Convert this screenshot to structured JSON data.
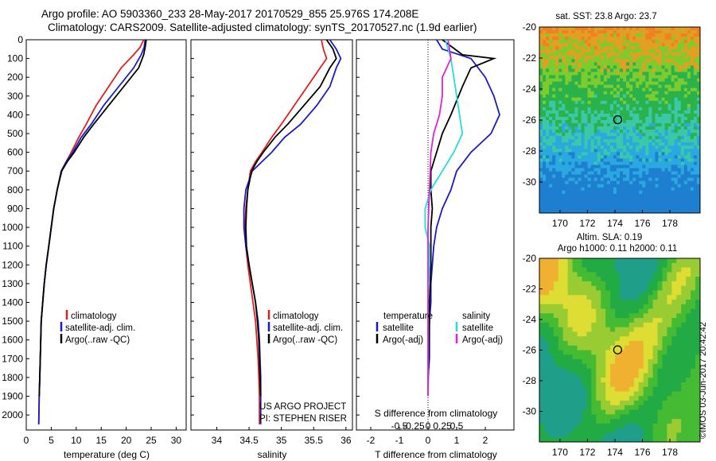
{
  "header": {
    "line1": "Argo profile: AO 5903360_233 28-May-2017 20170529_855 25.976S 174.208E",
    "line2": "Climatology: CARS2009. Satellite-adjusted climatology: synTS_20170527.nc (1.9d earlier)"
  },
  "colors": {
    "clim": "#e02020",
    "sat": "#1a1acc",
    "argo": "#000000",
    "sat_s": "#22dddd",
    "argo_s": "#dd22dd"
  },
  "chart_data": [
    {
      "type": "line",
      "xlabel": "temperature (deg C)",
      "xlim": [
        0,
        32
      ],
      "ylim": [
        0,
        2080
      ],
      "xticks": [
        "0",
        "5",
        "10",
        "15",
        "20",
        "25",
        "30"
      ],
      "yticks": [
        "0",
        "100",
        "200",
        "300",
        "400",
        "500",
        "600",
        "700",
        "800",
        "900",
        "1000",
        "1100",
        "1200",
        "1300",
        "1400",
        "1500",
        "1600",
        "1700",
        "1800",
        "1900",
        "2000"
      ],
      "legend": [
        "climatology",
        "satellite-adj. clim.",
        "Argo(..raw -QC)"
      ],
      "series": [
        {
          "name": "climatology",
          "color": "clim",
          "x": [
            23.5,
            22.8,
            21.5,
            19.0,
            16.5,
            14.0,
            12.0,
            10.5,
            9.0,
            8.0,
            7.0,
            6.2,
            5.5,
            5.0,
            4.5,
            4.0,
            3.6,
            3.3,
            3.0,
            2.9,
            2.8,
            2.7,
            2.6,
            2.5
          ],
          "y": [
            0,
            40,
            80,
            150,
            250,
            350,
            450,
            520,
            600,
            650,
            700,
            800,
            900,
            1000,
            1100,
            1200,
            1300,
            1400,
            1500,
            1600,
            1700,
            1800,
            1900,
            2050
          ]
        },
        {
          "name": "satellite-adj. clim.",
          "color": "sat",
          "x": [
            23.8,
            23.6,
            23.0,
            21.5,
            18.5,
            15.5,
            13.0,
            11.0,
            9.3,
            8.0,
            7.0,
            6.2,
            5.5,
            5.0,
            4.5,
            4.0,
            3.6,
            3.3,
            3.0,
            2.9,
            2.8,
            2.7,
            2.6,
            2.5
          ],
          "y": [
            0,
            40,
            80,
            150,
            250,
            350,
            450,
            520,
            600,
            650,
            700,
            800,
            900,
            1000,
            1100,
            1200,
            1300,
            1400,
            1500,
            1600,
            1700,
            1800,
            1900,
            2050
          ]
        },
        {
          "name": "Argo(..raw -QC)",
          "color": "argo",
          "x": [
            24.0,
            23.8,
            23.5,
            22.5,
            19.5,
            16.5,
            13.5,
            11.5,
            9.6,
            8.2,
            7.1,
            6.2,
            5.5,
            5.0,
            4.5,
            4.0,
            3.6,
            3.3,
            3.0,
            2.9,
            2.8,
            2.7,
            2.6
          ],
          "y": [
            0,
            40,
            80,
            150,
            250,
            350,
            450,
            520,
            600,
            650,
            700,
            800,
            900,
            1000,
            1100,
            1200,
            1300,
            1400,
            1500,
            1600,
            1700,
            1800,
            1900
          ]
        }
      ]
    },
    {
      "type": "line",
      "xlabel": "salinity",
      "xlim": [
        33.6,
        36.1
      ],
      "ylim": [
        0,
        2080
      ],
      "xticks": [
        "34",
        "34.5",
        "35",
        "35.5",
        "36"
      ],
      "legend": [
        "climatology",
        "satellite-adj. clim.",
        "Argo(..raw -QC)"
      ],
      "annotation": [
        "US ARGO PROJECT",
        "PI: STEPHEN RISER"
      ],
      "series": [
        {
          "name": "climatology",
          "color": "clim",
          "x": [
            35.62,
            35.65,
            35.7,
            35.6,
            35.4,
            35.2,
            35.0,
            34.85,
            34.7,
            34.6,
            34.52,
            34.48,
            34.45,
            34.44,
            34.45,
            34.48,
            34.52,
            34.56,
            34.6,
            34.62,
            34.64,
            34.65,
            34.66,
            34.66
          ],
          "y": [
            0,
            50,
            100,
            150,
            250,
            350,
            450,
            520,
            600,
            650,
            700,
            800,
            900,
            1000,
            1100,
            1200,
            1300,
            1400,
            1500,
            1600,
            1700,
            1800,
            1900,
            2050
          ]
        },
        {
          "name": "satellite-adj. clim.",
          "color": "sat",
          "x": [
            35.75,
            35.85,
            35.92,
            35.85,
            35.75,
            35.55,
            35.3,
            35.05,
            34.85,
            34.7,
            34.55,
            34.45,
            34.42,
            34.42,
            34.45,
            34.5,
            34.55,
            34.6,
            34.64,
            34.66,
            34.67,
            34.68,
            34.68,
            34.68
          ],
          "y": [
            0,
            50,
            100,
            150,
            250,
            350,
            450,
            520,
            600,
            650,
            700,
            800,
            900,
            1000,
            1100,
            1200,
            1300,
            1400,
            1500,
            1600,
            1700,
            1800,
            1900,
            2050
          ]
        },
        {
          "name": "Argo(..raw -QC)",
          "color": "argo",
          "x": [
            35.7,
            35.8,
            35.85,
            35.75,
            35.6,
            35.35,
            35.1,
            34.9,
            34.72,
            34.62,
            34.54,
            34.48,
            34.46,
            34.45,
            34.46,
            34.5,
            34.55,
            34.6,
            34.63,
            34.65,
            34.66,
            34.67,
            34.68
          ],
          "y": [
            0,
            50,
            100,
            150,
            250,
            350,
            450,
            520,
            600,
            650,
            700,
            800,
            900,
            1000,
            1100,
            1200,
            1300,
            1400,
            1500,
            1600,
            1700,
            1800,
            1900
          ]
        }
      ]
    },
    {
      "type": "line",
      "xlabel": "T difference from climatology",
      "xlabel_top": "S difference from climatology",
      "xlim": [
        -2.5,
        3.0
      ],
      "ylim": [
        0,
        2080
      ],
      "xticks": [
        "-2",
        "-1",
        "0",
        "1",
        "2"
      ],
      "s_ticks": [
        "-0.5",
        "-0.25",
        "0",
        "0.25",
        "0.5"
      ],
      "legend_headers": [
        "temperature",
        "salinity"
      ],
      "legend": [
        "satellite",
        "Argo(-adj)",
        "satellite",
        "Argo(-adj)"
      ],
      "series": [
        {
          "name": "satellite",
          "color": "sat",
          "x": [
            0.3,
            0.5,
            1.5,
            2.0,
            2.3,
            2.5,
            2.2,
            1.5,
            1.0,
            0.8,
            0.5,
            0.3,
            0.2,
            0.15,
            0.1,
            0.1,
            0.05,
            0.05,
            0.05,
            0.0,
            0.0
          ],
          "y": [
            0,
            50,
            100,
            200,
            300,
            400,
            500,
            600,
            700,
            800,
            900,
            1000,
            1100,
            1200,
            1300,
            1400,
            1500,
            1600,
            1700,
            1800,
            1900
          ]
        },
        {
          "name": "Argo(-adj)",
          "color": "argo",
          "x": [
            0.5,
            1.2,
            2.3,
            1.5,
            1.2,
            0.8,
            0.5,
            0.3,
            0.1,
            0.1,
            0.15,
            0.1,
            0.1,
            0.1,
            0.08,
            0.05,
            0.05,
            0.03,
            0.02,
            0.0
          ],
          "y": [
            0,
            80,
            100,
            150,
            250,
            400,
            500,
            600,
            700,
            800,
            900,
            1000,
            1100,
            1200,
            1300,
            1400,
            1500,
            1600,
            1700,
            1900
          ]
        },
        {
          "name": "satellite",
          "color": "sat_s",
          "x": [
            0.6,
            0.8,
            0.9,
            1.0,
            1.1,
            1.2,
            0.9,
            0.5,
            0.1,
            -0.1,
            -0.1,
            0.05,
            0.05,
            0.02,
            0.0,
            0.0,
            0.0,
            0.0
          ],
          "y": [
            0,
            100,
            200,
            300,
            400,
            500,
            600,
            700,
            800,
            900,
            1000,
            1100,
            1200,
            1300,
            1400,
            1500,
            1700,
            1900
          ]
        },
        {
          "name": "Argo(-adj)",
          "color": "argo_s",
          "x": [
            0.7,
            0.8,
            0.5,
            0.5,
            0.4,
            0.2,
            0.1,
            0.05,
            0.0,
            0.0,
            0.0
          ],
          "y": [
            0,
            100,
            200,
            300,
            400,
            500,
            600,
            800,
            1000,
            1400,
            1900
          ]
        }
      ]
    },
    {
      "type": "heatmap",
      "title": "sat. SST: 23.8  Argo: 23.7",
      "xticks": [
        "170",
        "172",
        "174",
        "176",
        "178"
      ],
      "yticks": [
        "-20",
        "-22",
        "-24",
        "-26",
        "-28",
        "-30"
      ],
      "xlim": [
        168.5,
        180.2
      ],
      "ylim": [
        -32,
        -20
      ],
      "marker": {
        "lon": 174.2,
        "lat": -25.98
      }
    },
    {
      "type": "heatmap",
      "title": "Altim. SLA: 0.19",
      "subtitle": "Argo h1000: 0.11  h2000: 0.11",
      "xticks": [
        "170",
        "172",
        "174",
        "176",
        "178"
      ],
      "yticks": [
        "-20",
        "-22",
        "-24",
        "-26",
        "-28",
        "-30"
      ],
      "xlim": [
        168.5,
        180.2
      ],
      "ylim": [
        -32,
        -20
      ],
      "marker": {
        "lon": 174.2,
        "lat": -25.98
      }
    }
  ],
  "stamp": "©IMOS 03-Jun-2017 20:42:42"
}
